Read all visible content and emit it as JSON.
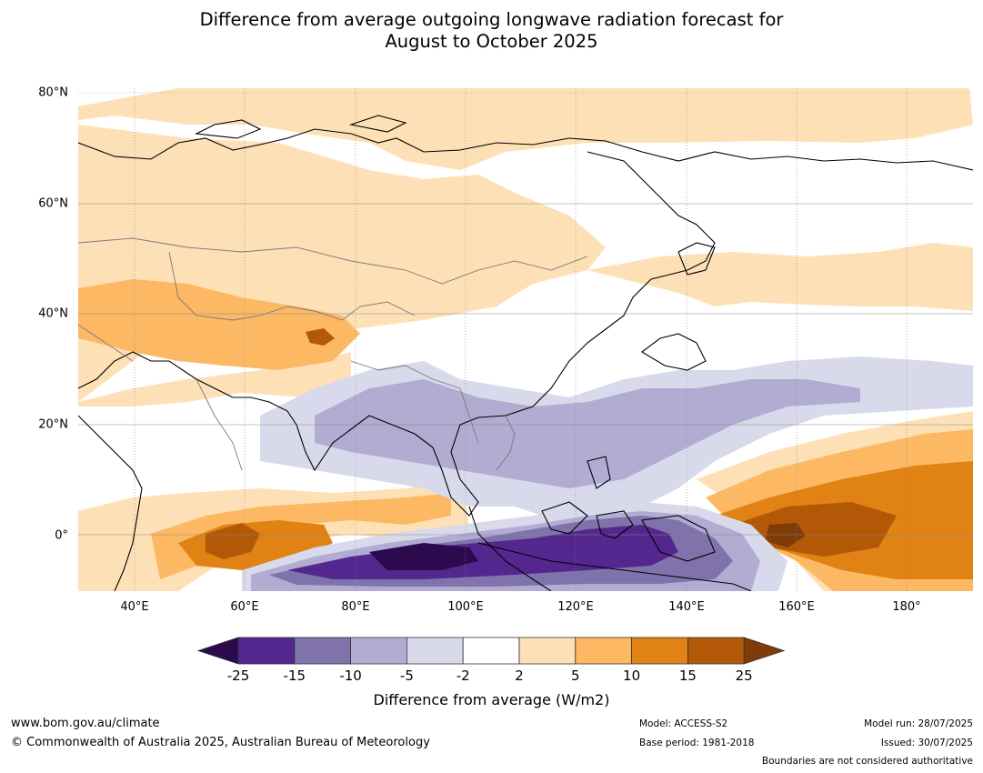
{
  "title": {
    "line1": "Difference from average outgoing longwave radiation forecast for",
    "line2": "August to October 2025"
  },
  "map": {
    "lat_labels": [
      "80°N",
      "60°N",
      "40°N",
      "20°N",
      "0°"
    ],
    "lon_labels": [
      "40°E",
      "60°E",
      "80°E",
      "100°E",
      "120°E",
      "140°E",
      "160°E",
      "180°"
    ]
  },
  "colorbar": {
    "tick_labels": [
      "-25",
      "-15",
      "-10",
      "-5",
      "-2",
      "2",
      "5",
      "10",
      "15",
      "25"
    ],
    "colors": [
      "#2c0a4e",
      "#54278f",
      "#8073ac",
      "#b2abd2",
      "#d8daeb",
      "#ffffff",
      "#fee0b6",
      "#fdb863",
      "#e08214",
      "#b35806",
      "#7f3b08"
    ],
    "label": "Difference from average (W/m2)"
  },
  "footer": {
    "website": "www.bom.gov.au/climate",
    "copyright": "© Commonwealth of Australia 2025, Australian Bureau of Meteorology",
    "model": "Model: ACCESS-S2",
    "base_period": "Base period: 1981-2018",
    "model_run": "Model run: 28/07/2025",
    "issued": "Issued: 30/07/2025",
    "disclaimer": "Boundaries are not considered authoritative"
  }
}
